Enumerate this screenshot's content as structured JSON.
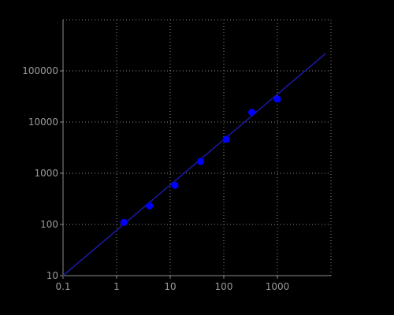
{
  "chart_data": {
    "type": "scatter",
    "title": "",
    "xlabel": "",
    "ylabel": "",
    "x_scale": "log",
    "y_scale": "log",
    "xlim": [
      0.1,
      10000
    ],
    "ylim": [
      10,
      1000000
    ],
    "grid": true,
    "x_ticks": [
      0.1,
      1,
      10,
      100,
      1000
    ],
    "x_tick_labels": [
      "0.1",
      "1",
      "10",
      "100",
      "1000"
    ],
    "y_ticks": [
      10,
      100,
      1000,
      10000,
      100000
    ],
    "y_tick_labels": [
      "10",
      "100",
      "1000",
      "10000",
      "100000"
    ],
    "series": [
      {
        "type": "scatter",
        "x": [
          1.37,
          4.12,
          12.3,
          37,
          111,
          333,
          1000
        ],
        "y": [
          110,
          230,
          580,
          1700,
          4600,
          15500,
          28000
        ]
      },
      {
        "type": "line",
        "x": [
          0.1,
          8000
        ],
        "y": [
          10,
          220000
        ]
      }
    ],
    "colors": {
      "background": "#000000",
      "points": "#0000ff",
      "fit_line": "#1a1aa8",
      "grid": "#8c8c8c",
      "axis": "#8c8c8c",
      "tick_text": "#9a9a9a"
    }
  }
}
